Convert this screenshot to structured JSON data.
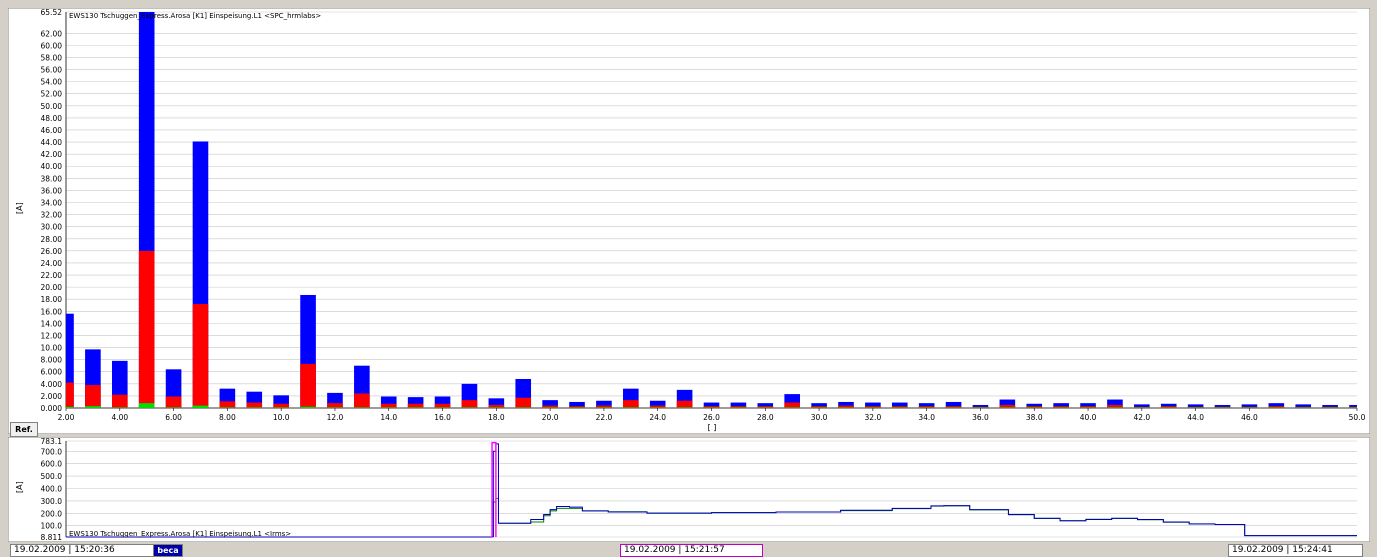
{
  "top_chart": {
    "title": "EWS130   Tschuggen_Express.Arosa   [K1] Einspeisung.L1   <SPC_hrmlabs>",
    "ylabel": "[A]",
    "xlabel": "[ ]",
    "y_ticks": [
      "65.52",
      "62.00",
      "60.00",
      "58.00",
      "56.00",
      "54.00",
      "52.00",
      "50.00",
      "48.00",
      "46.00",
      "44.00",
      "42.00",
      "40.00",
      "38.00",
      "36.00",
      "34.00",
      "32.00",
      "30.00",
      "28.00",
      "26.00",
      "24.00",
      "22.00",
      "20.00",
      "18.00",
      "16.00",
      "14.00",
      "12.00",
      "10.00",
      "8.000",
      "6.000",
      "4.000",
      "2.000",
      "0.000"
    ],
    "x_ticks": [
      "2.00",
      "4.00",
      "6.00",
      "8.00",
      "10.0",
      "12.0",
      "14.0",
      "16.0",
      "18.0",
      "20.0",
      "22.0",
      "24.0",
      "26.0",
      "28.0",
      "30.0",
      "32.0",
      "34.0",
      "36.0",
      "38.0",
      "40.0",
      "42.0",
      "44.0",
      "46.0",
      "50.0"
    ]
  },
  "bottom_chart": {
    "title": "EWS130   Tschuggen_Express.Arosa   [K1] Einspeisung.L1   <Irms>",
    "ylabel": "[A]",
    "y_ticks": [
      "783.1",
      "700.0",
      "600.0",
      "500.0",
      "400.0",
      "300.0",
      "200.0",
      "100.0",
      "8.811"
    ]
  },
  "ref_button": {
    "label": "Ref."
  },
  "status_bar": {
    "left": "19.02.2009 | 15:20:36",
    "logo": "beca",
    "center": "19.02.2009 | 15:21:57",
    "right": "19.02.2009 | 15:24:41"
  },
  "colors": {
    "blue": "#0000ff",
    "red": "#ff0000",
    "green": "#00dd00",
    "grid": "#c8c8c8",
    "magenta": "#ff00ff",
    "line_blue": "#0000c0",
    "line_green": "#008000"
  },
  "chart_data": [
    {
      "type": "bar",
      "title": "EWS130   Tschuggen_Express.Arosa   [K1] Einspeisung.L1   <SPC_hrmlabs>",
      "xlabel": "[ ]",
      "ylabel": "[A]",
      "xlim": [
        2,
        50
      ],
      "ylim": [
        0,
        65.52
      ],
      "x": [
        2,
        3,
        4,
        5,
        6,
        7,
        8,
        9,
        10,
        11,
        12,
        13,
        14,
        15,
        16,
        17,
        18,
        19,
        20,
        21,
        22,
        23,
        24,
        25,
        26,
        27,
        28,
        29,
        30,
        31,
        32,
        33,
        34,
        35,
        36,
        37,
        38,
        39,
        40,
        41,
        42,
        43,
        44,
        45,
        46,
        47,
        48,
        49,
        50
      ],
      "series": [
        {
          "color": "blue",
          "values": [
            15.6,
            9.7,
            7.8,
            65.52,
            6.4,
            44.1,
            3.2,
            2.7,
            2.1,
            18.7,
            2.5,
            7.0,
            1.9,
            1.8,
            1.9,
            4.0,
            1.6,
            4.8,
            1.3,
            1.0,
            1.2,
            3.2,
            1.2,
            3.0,
            0.9,
            0.9,
            0.8,
            2.3,
            0.8,
            1.0,
            0.9,
            0.9,
            0.8,
            1.0,
            0.5,
            1.4,
            0.7,
            0.8,
            0.8,
            1.4,
            0.6,
            0.7,
            0.6,
            0.5,
            0.6,
            0.8,
            0.6,
            0.5,
            0.5
          ]
        },
        {
          "color": "red",
          "values": [
            4.2,
            3.8,
            2.2,
            26.0,
            1.9,
            17.2,
            1.1,
            0.9,
            0.7,
            7.3,
            0.8,
            2.4,
            0.7,
            0.7,
            0.7,
            1.3,
            0.5,
            1.7,
            0.4,
            0.3,
            0.4,
            1.3,
            0.4,
            1.2,
            0.3,
            0.3,
            0.3,
            0.9,
            0.3,
            0.4,
            0.3,
            0.3,
            0.3,
            0.3,
            0.2,
            0.5,
            0.3,
            0.3,
            0.3,
            0.5,
            0.2,
            0.3,
            0.2,
            0.2,
            0.2,
            0.3,
            0.2,
            0.2,
            0.2
          ]
        },
        {
          "color": "green",
          "values": [
            0.2,
            0.3,
            0.1,
            0.8,
            0.1,
            0.4,
            0.1,
            0.1,
            0.1,
            0.2,
            0.1,
            0.1,
            0.1,
            0.1,
            0.1,
            0.1,
            0.1,
            0.1,
            0.1,
            0.1,
            0.1,
            0.1,
            0.1,
            0.1,
            0.1,
            0.1,
            0.1,
            0.1,
            0.1,
            0.1,
            0.1,
            0.1,
            0.1,
            0.1,
            0.1,
            0.1,
            0.1,
            0.1,
            0.1,
            0.1,
            0.1,
            0.1,
            0.1,
            0.1,
            0.1,
            0.1,
            0.1,
            0.1,
            0.1
          ]
        }
      ]
    },
    {
      "type": "line",
      "title": "EWS130   Tschuggen_Express.Arosa   [K1] Einspeisung.L1   <Irms>",
      "ylabel": "[A]",
      "ylim": [
        8.811,
        783.1
      ],
      "xlim": [
        0,
        100
      ],
      "series": [
        {
          "color": "blue",
          "points": [
            [
              0,
              8.8
            ],
            [
              32,
              8.8
            ],
            [
              33.0,
              12
            ],
            [
              33.1,
              700
            ],
            [
              33.3,
              760
            ],
            [
              33.5,
              120
            ],
            [
              35,
              120
            ],
            [
              36,
              150
            ],
            [
              37,
              190
            ],
            [
              37.5,
              230
            ],
            [
              38,
              255
            ],
            [
              39,
              250
            ],
            [
              40,
              220
            ],
            [
              42,
              210
            ],
            [
              45,
              200
            ],
            [
              50,
              205
            ],
            [
              55,
              210
            ],
            [
              60,
              225
            ],
            [
              64,
              240
            ],
            [
              67,
              260
            ],
            [
              68,
              262
            ],
            [
              70,
              230
            ],
            [
              73,
              190
            ],
            [
              75,
              160
            ],
            [
              77,
              140
            ],
            [
              79,
              150
            ],
            [
              81,
              160
            ],
            [
              83,
              150
            ],
            [
              85,
              130
            ],
            [
              87,
              115
            ],
            [
              89,
              110
            ],
            [
              91,
              110
            ],
            [
              91.3,
              20
            ],
            [
              93,
              20
            ],
            [
              100,
              20
            ]
          ]
        },
        {
          "color": "green",
          "points": [
            [
              0,
              8.8
            ],
            [
              32,
              8.8
            ],
            [
              33.0,
              12
            ],
            [
              33.1,
              290
            ],
            [
              33.3,
              320
            ],
            [
              33.5,
              120
            ],
            [
              35,
              120
            ],
            [
              36,
              130
            ],
            [
              37,
              180
            ],
            [
              37.5,
              220
            ],
            [
              38,
              240
            ],
            [
              39,
              240
            ],
            [
              40,
              220
            ],
            [
              42,
              212
            ],
            [
              45,
              202
            ],
            [
              50,
              205
            ],
            [
              55,
              210
            ],
            [
              60,
              222
            ],
            [
              64,
              238
            ],
            [
              67,
              258
            ],
            [
              68,
              260
            ],
            [
              70,
              228
            ],
            [
              73,
              188
            ],
            [
              75,
              158
            ],
            [
              77,
              140
            ],
            [
              79,
              152
            ],
            [
              81,
              158
            ],
            [
              83,
              148
            ],
            [
              85,
              128
            ],
            [
              87,
              114
            ],
            [
              89,
              110
            ],
            [
              91,
              110
            ],
            [
              91.3,
              20
            ],
            [
              93,
              20
            ],
            [
              100,
              20
            ]
          ]
        },
        {
          "color": "magenta",
          "points": [
            [
              32.9,
              8.8
            ],
            [
              33.0,
              770
            ],
            [
              33.2,
              770
            ],
            [
              33.3,
              8.8
            ]
          ]
        }
      ]
    }
  ]
}
